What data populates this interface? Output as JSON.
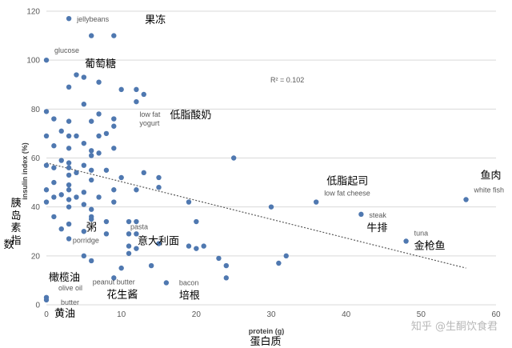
{
  "chart_data": {
    "type": "scatter",
    "xlabel": "protein (g)",
    "xlabel_cn": "蛋白质",
    "ylabel": "insulin index (%)",
    "ylabel_cn": "胰岛素指数",
    "xlim": [
      0,
      60
    ],
    "ylim": [
      0,
      120
    ],
    "xticks": [
      0,
      10,
      20,
      30,
      40,
      50,
      60
    ],
    "yticks": [
      0,
      20,
      40,
      60,
      80,
      100,
      120
    ],
    "grid": "horizontal",
    "trendline": {
      "x": [
        0,
        56
      ],
      "y": [
        58,
        15
      ],
      "style": "dotted",
      "r2_label": "R² = 0.102"
    },
    "points": [
      [
        3,
        117
      ],
      [
        6,
        110
      ],
      [
        9,
        110
      ],
      [
        0,
        100
      ],
      [
        4,
        94
      ],
      [
        5,
        93
      ],
      [
        3,
        89
      ],
      [
        7,
        91
      ],
      [
        10,
        88
      ],
      [
        12,
        88
      ],
      [
        13,
        86
      ],
      [
        12,
        83
      ],
      [
        5,
        82
      ],
      [
        0,
        79
      ],
      [
        1,
        76
      ],
      [
        3,
        75
      ],
      [
        7,
        78
      ],
      [
        6,
        75
      ],
      [
        9,
        76
      ],
      [
        9,
        73
      ],
      [
        2,
        71
      ],
      [
        3,
        69
      ],
      [
        0,
        69
      ],
      [
        4,
        69
      ],
      [
        7,
        69
      ],
      [
        8,
        70
      ],
      [
        1,
        65
      ],
      [
        3,
        64
      ],
      [
        5,
        66
      ],
      [
        6,
        63
      ],
      [
        6,
        61
      ],
      [
        7,
        62
      ],
      [
        9,
        64
      ],
      [
        2,
        59
      ],
      [
        0,
        57
      ],
      [
        1,
        56
      ],
      [
        3,
        58
      ],
      [
        3,
        56
      ],
      [
        5,
        57
      ],
      [
        6,
        55
      ],
      [
        8,
        55
      ],
      [
        3,
        53
      ],
      [
        4,
        54
      ],
      [
        6,
        51
      ],
      [
        10,
        52
      ],
      [
        12,
        47
      ],
      [
        13,
        54
      ],
      [
        15,
        52
      ],
      [
        15,
        48
      ],
      [
        25,
        60
      ],
      [
        1,
        50
      ],
      [
        3,
        49
      ],
      [
        3,
        47
      ],
      [
        2,
        45
      ],
      [
        0,
        47
      ],
      [
        1,
        44
      ],
      [
        0,
        42
      ],
      [
        3,
        43
      ],
      [
        4,
        44
      ],
      [
        5,
        46
      ],
      [
        5,
        41
      ],
      [
        6,
        39
      ],
      [
        7,
        44
      ],
      [
        9,
        42
      ],
      [
        9,
        47
      ],
      [
        19,
        42
      ],
      [
        3,
        40
      ],
      [
        1,
        36
      ],
      [
        3,
        33
      ],
      [
        2,
        31
      ],
      [
        6,
        36
      ],
      [
        6,
        35
      ],
      [
        8,
        34
      ],
      [
        11,
        34
      ],
      [
        12,
        34
      ],
      [
        20,
        34
      ],
      [
        5,
        30
      ],
      [
        8,
        29
      ],
      [
        11,
        29
      ],
      [
        12,
        29
      ],
      [
        3,
        27
      ],
      [
        11,
        24
      ],
      [
        15,
        25
      ],
      [
        19,
        24
      ],
      [
        20,
        23
      ],
      [
        21,
        24
      ],
      [
        5,
        20
      ],
      [
        6,
        18
      ],
      [
        11,
        21
      ],
      [
        12,
        23
      ],
      [
        23,
        19
      ],
      [
        24,
        16
      ],
      [
        31,
        17
      ],
      [
        32,
        20
      ],
      [
        10,
        15
      ],
      [
        14,
        16
      ],
      [
        9,
        11
      ],
      [
        16,
        9
      ],
      [
        24,
        11
      ],
      [
        30,
        40
      ],
      [
        36,
        42
      ],
      [
        42,
        37
      ],
      [
        48,
        26
      ],
      [
        56,
        43
      ],
      [
        0,
        3
      ],
      [
        0,
        2
      ]
    ],
    "annotations": [
      {
        "text": "jellybeans",
        "cn": "果冻",
        "x": 3,
        "y": 117
      },
      {
        "text": "glucose",
        "cn": "葡萄糖",
        "x": 0,
        "y": 100
      },
      {
        "text": "low fat yogurt",
        "cn": "低脂酸奶",
        "x": 12,
        "y": 83
      },
      {
        "text": "low fat cheese",
        "cn": "低脂起司",
        "x": 36,
        "y": 42
      },
      {
        "text": "white fish",
        "cn": "鱼肉",
        "x": 56,
        "y": 43
      },
      {
        "text": "steak",
        "cn": "牛排",
        "x": 42,
        "y": 37
      },
      {
        "text": "tuna",
        "cn": "金枪鱼",
        "x": 48,
        "y": 26
      },
      {
        "text": "porridge",
        "cn": "粥",
        "x": 8,
        "y": 29
      },
      {
        "text": "pasta",
        "cn": "意大利面",
        "x": 11,
        "y": 29
      },
      {
        "text": "olive oil",
        "cn": "橄榄油",
        "x": 0,
        "y": 3
      },
      {
        "text": "butter",
        "cn": "黄油",
        "x": 0,
        "y": 2
      },
      {
        "text": "peanut butter",
        "cn": "花生酱",
        "x": 9,
        "y": 11
      },
      {
        "text": "bacon",
        "cn": "培根",
        "x": 16,
        "y": 9
      }
    ],
    "colors": {
      "point": "#4f78b0",
      "text": "#595959",
      "grid": "#d9d9d9",
      "trend": "#5a5a5a"
    }
  },
  "watermark": "知乎 @生酮饮食君"
}
